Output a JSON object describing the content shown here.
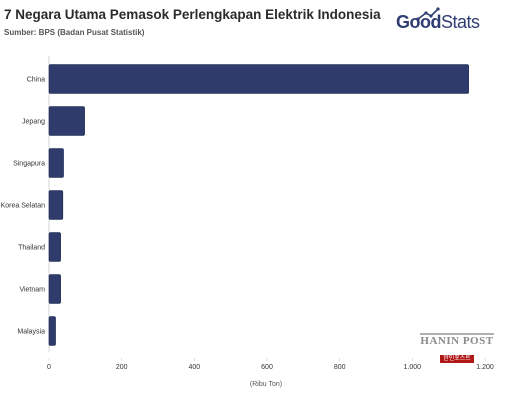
{
  "title": "7 Negara Utama Pemasok Perlengkapan Elektrik Indonesia",
  "source": "Sumber: BPS (Badan Pusat Statistik)",
  "logo": {
    "part1": "Good",
    "part2": "Stats"
  },
  "watermark": {
    "main": "HANIN POST",
    "sub": "한인포스트"
  },
  "colors": {
    "bar": "#2f3b6b",
    "title": "#2b2b2b",
    "logo": "#2f3d73"
  },
  "chart_data": {
    "type": "bar",
    "orientation": "horizontal",
    "categories": [
      "China",
      "Jepang",
      "Singapura",
      "Korea Selatan",
      "Thailand",
      "Vietnam",
      "Malaysia"
    ],
    "values": [
      1155,
      98,
      40,
      38,
      32,
      32,
      18
    ],
    "xlabel": "(Ribu Ton)",
    "xlim": [
      0,
      1200
    ],
    "xticks": [
      0,
      200,
      400,
      600,
      800,
      1000,
      1200
    ],
    "xtick_labels": [
      "0",
      "200",
      "400",
      "600",
      "800",
      "1.000",
      "1.200"
    ],
    "grid": false
  }
}
